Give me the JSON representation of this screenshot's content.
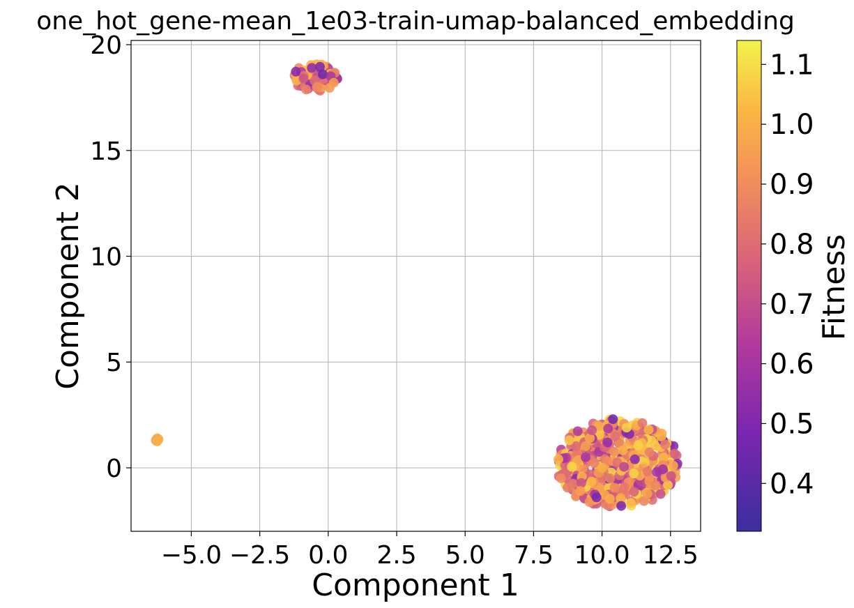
{
  "chart_data": {
    "type": "scatter",
    "title": "one_hot_gene-mean_1e03-train-umap-balanced_embedding",
    "xlabel": "Component 1",
    "ylabel": "Component 2",
    "xlim": [
      -7.2,
      13.6
    ],
    "ylim": [
      -3.0,
      20.2
    ],
    "xticks": [
      -5.0,
      -2.5,
      0.0,
      2.5,
      5.0,
      7.5,
      10.0,
      12.5
    ],
    "xtick_labels": [
      "−5.0",
      "−2.5",
      "0.0",
      "2.5",
      "5.0",
      "7.5",
      "10.0",
      "12.5"
    ],
    "yticks": [
      0,
      5,
      10,
      15,
      20
    ],
    "ytick_labels": [
      "0",
      "5",
      "10",
      "15",
      "20"
    ],
    "grid": true,
    "colormap": "plasma",
    "colorbar": {
      "label": "Fitness",
      "range": [
        0.32,
        1.14
      ],
      "ticks": [
        0.4,
        0.5,
        0.6,
        0.7,
        0.8,
        0.9,
        1.0,
        1.1
      ],
      "tick_labels": [
        "0.4",
        "0.5",
        "0.6",
        "0.7",
        "0.8",
        "0.9",
        "1.0",
        "1.1"
      ]
    },
    "clusters": [
      {
        "x_range": [
          -6.35,
          -6.15
        ],
        "y_range": [
          1.2,
          1.4
        ],
        "count": 3,
        "fitness_range": [
          0.95,
          1.0
        ]
      },
      {
        "x_range": [
          -1.3,
          0.35
        ],
        "y_range": [
          17.8,
          19.1
        ],
        "count": 70,
        "fitness_range": [
          0.45,
          1.05
        ]
      },
      {
        "x_range": [
          8.3,
          12.8
        ],
        "y_range": [
          -1.9,
          2.3
        ],
        "count": 520,
        "fitness_range": [
          0.4,
          1.1
        ]
      }
    ],
    "points": [
      [
        -6.3,
        1.3,
        0.97
      ],
      [
        -6.2,
        1.35,
        0.99
      ],
      [
        -6.25,
        1.25,
        1.0
      ],
      [
        -0.6,
        18.9,
        0.55
      ],
      [
        -0.3,
        18.95,
        0.5
      ],
      [
        -0.2,
        18.6,
        0.45
      ],
      [
        -0.5,
        18.3,
        0.8
      ],
      [
        -0.9,
        18.4,
        0.72
      ],
      [
        0.1,
        18.5,
        0.6
      ],
      [
        0.2,
        18.2,
        0.95
      ],
      [
        -0.4,
        18.0,
        0.9
      ],
      [
        10.4,
        2.3,
        0.45
      ],
      [
        11.0,
        1.6,
        0.5
      ],
      [
        10.2,
        1.2,
        0.55
      ],
      [
        9.8,
        -1.4,
        0.48
      ],
      [
        10.7,
        -1.8,
        0.5
      ],
      [
        11.2,
        0.4,
        0.52
      ],
      [
        9.4,
        0.5,
        0.6
      ],
      [
        12.0,
        -0.2,
        0.58
      ],
      [
        8.8,
        1.3,
        1.05
      ],
      [
        12.6,
        0.1,
        0.98
      ],
      [
        10.9,
        1.9,
        1.08
      ],
      [
        9.2,
        -1.1,
        0.95
      ],
      [
        11.7,
        1.8,
        1.02
      ],
      [
        8.5,
        -0.5,
        0.9
      ],
      [
        10.0,
        0.0,
        1.0
      ],
      [
        12.3,
        1.1,
        0.85
      ]
    ]
  }
}
